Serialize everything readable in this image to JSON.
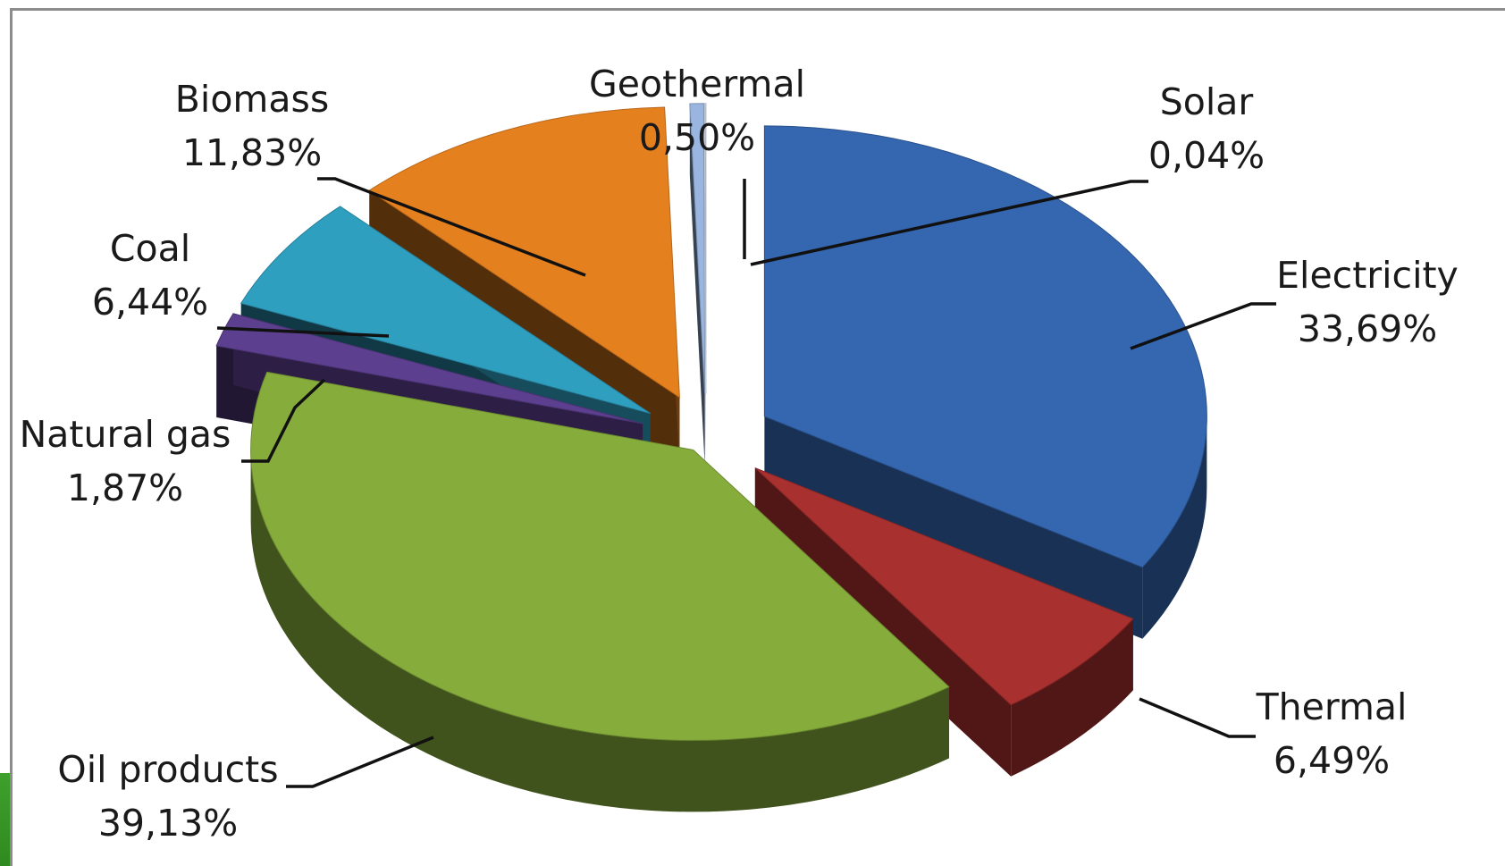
{
  "chart_data": {
    "type": "pie",
    "title": "",
    "style": "3d-exploded",
    "value_format": "percent-comma-decimal",
    "slices": [
      {
        "label": "Electricity",
        "value": 33.69,
        "display": "33,69%",
        "color": "#3566b0"
      },
      {
        "label": "Thermal",
        "value": 6.49,
        "display": "6,49%",
        "color": "#a8302e"
      },
      {
        "label": "Oil products",
        "value": 39.13,
        "display": "39,13%",
        "color": "#86ad3c"
      },
      {
        "label": "Natural gas",
        "value": 1.87,
        "display": "1,87%",
        "color": "#5c3f8e"
      },
      {
        "label": "Coal",
        "value": 6.44,
        "display": "6,44%",
        "color": "#2f9fc0"
      },
      {
        "label": "Biomass",
        "value": 11.83,
        "display": "11,83%",
        "color": "#e5801f"
      },
      {
        "label": "Geothermal",
        "value": 0.5,
        "display": "0,50%",
        "color": "#9ab6e0"
      },
      {
        "label": "Solar",
        "value": 0.04,
        "display": "0,04%",
        "color": "#d8e4f4"
      }
    ]
  }
}
